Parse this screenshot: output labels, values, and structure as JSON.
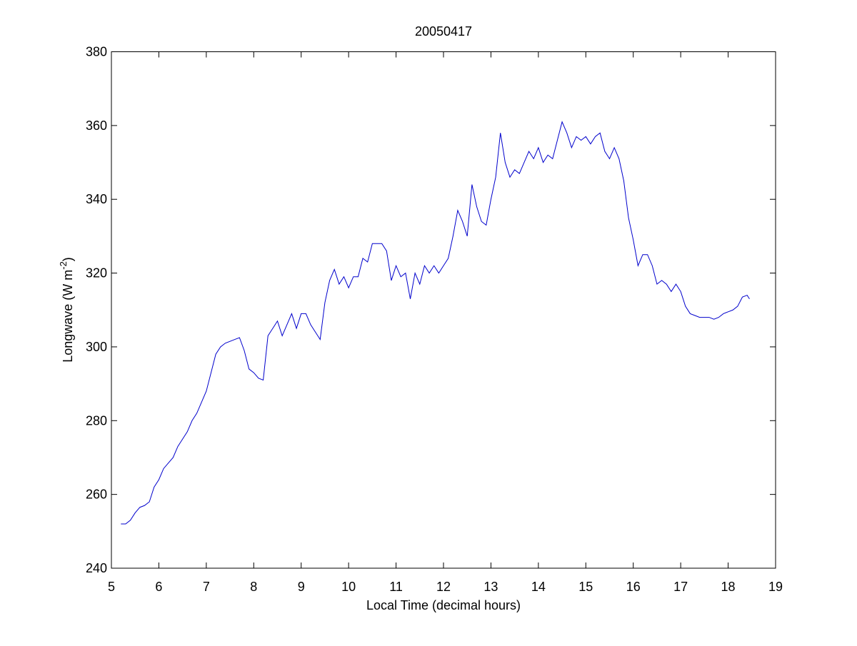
{
  "chart_data": {
    "type": "line",
    "title": "20050417",
    "xlabel": "Local Time (decimal hours)",
    "ylabel": {
      "base": "Longwave (W m",
      "sup": "-2",
      "end": ")"
    },
    "x": [
      5.2,
      5.3,
      5.4,
      5.5,
      5.6,
      5.7,
      5.8,
      5.9,
      6.0,
      6.1,
      6.2,
      6.3,
      6.4,
      6.5,
      6.6,
      6.7,
      6.8,
      6.9,
      7.0,
      7.1,
      7.2,
      7.3,
      7.4,
      7.5,
      7.6,
      7.7,
      7.8,
      7.9,
      8.0,
      8.1,
      8.2,
      8.3,
      8.4,
      8.5,
      8.6,
      8.7,
      8.8,
      8.9,
      9.0,
      9.1,
      9.2,
      9.3,
      9.4,
      9.5,
      9.6,
      9.7,
      9.8,
      9.9,
      10.0,
      10.1,
      10.2,
      10.3,
      10.4,
      10.5,
      10.6,
      10.7,
      10.8,
      10.9,
      11.0,
      11.1,
      11.2,
      11.3,
      11.4,
      11.5,
      11.6,
      11.7,
      11.8,
      11.9,
      12.0,
      12.1,
      12.2,
      12.3,
      12.4,
      12.5,
      12.6,
      12.7,
      12.8,
      12.9,
      13.0,
      13.1,
      13.2,
      13.3,
      13.4,
      13.5,
      13.6,
      13.7,
      13.8,
      13.9,
      14.0,
      14.1,
      14.2,
      14.3,
      14.4,
      14.5,
      14.6,
      14.7,
      14.8,
      14.9,
      15.0,
      15.1,
      15.2,
      15.3,
      15.4,
      15.5,
      15.6,
      15.7,
      15.8,
      15.9,
      16.0,
      16.1,
      16.2,
      16.3,
      16.4,
      16.5,
      16.6,
      16.7,
      16.8,
      16.9,
      17.0,
      17.1,
      17.2,
      17.3,
      17.4,
      17.5,
      17.6,
      17.7,
      17.8,
      17.9,
      18.0,
      18.1,
      18.2,
      18.3,
      18.4,
      18.45
    ],
    "series": [
      {
        "color": "#0000cc",
        "values": [
          252,
          252,
          253,
          255,
          256.5,
          257,
          258,
          262,
          264,
          267,
          268.5,
          270,
          273,
          275,
          277,
          280,
          282,
          285,
          288,
          293,
          298,
          300,
          301,
          301.5,
          302,
          302.5,
          299,
          294,
          293,
          291.5,
          291,
          303,
          305,
          307,
          303,
          306,
          309,
          305,
          309,
          309,
          306,
          304,
          302,
          312,
          318,
          321,
          317,
          319,
          316,
          319,
          319,
          324,
          323,
          328,
          328,
          328,
          326,
          318,
          322,
          319,
          320,
          313,
          320,
          317,
          322,
          320,
          322,
          320,
          322,
          324,
          330,
          337,
          334,
          330,
          344,
          338,
          334,
          333,
          340,
          346,
          358,
          350,
          346,
          348,
          347,
          350,
          353,
          351,
          354,
          350,
          352,
          351,
          356,
          361,
          358,
          354,
          357,
          356,
          357,
          355,
          357,
          358,
          353,
          351,
          354,
          351,
          345,
          335,
          329,
          322,
          325,
          325,
          322,
          317,
          318,
          317,
          315,
          317,
          315,
          311,
          309,
          308.5,
          308,
          308,
          308,
          307.5,
          308,
          309,
          309.5,
          310,
          311,
          313.5,
          314,
          313
        ]
      }
    ],
    "xlim": [
      5,
      19
    ],
    "xticks": [
      5,
      6,
      7,
      8,
      9,
      10,
      11,
      12,
      13,
      14,
      15,
      16,
      17,
      18,
      19
    ],
    "ylim": [
      240,
      380
    ],
    "yticks": [
      240,
      260,
      280,
      300,
      320,
      340,
      360,
      380
    ]
  }
}
